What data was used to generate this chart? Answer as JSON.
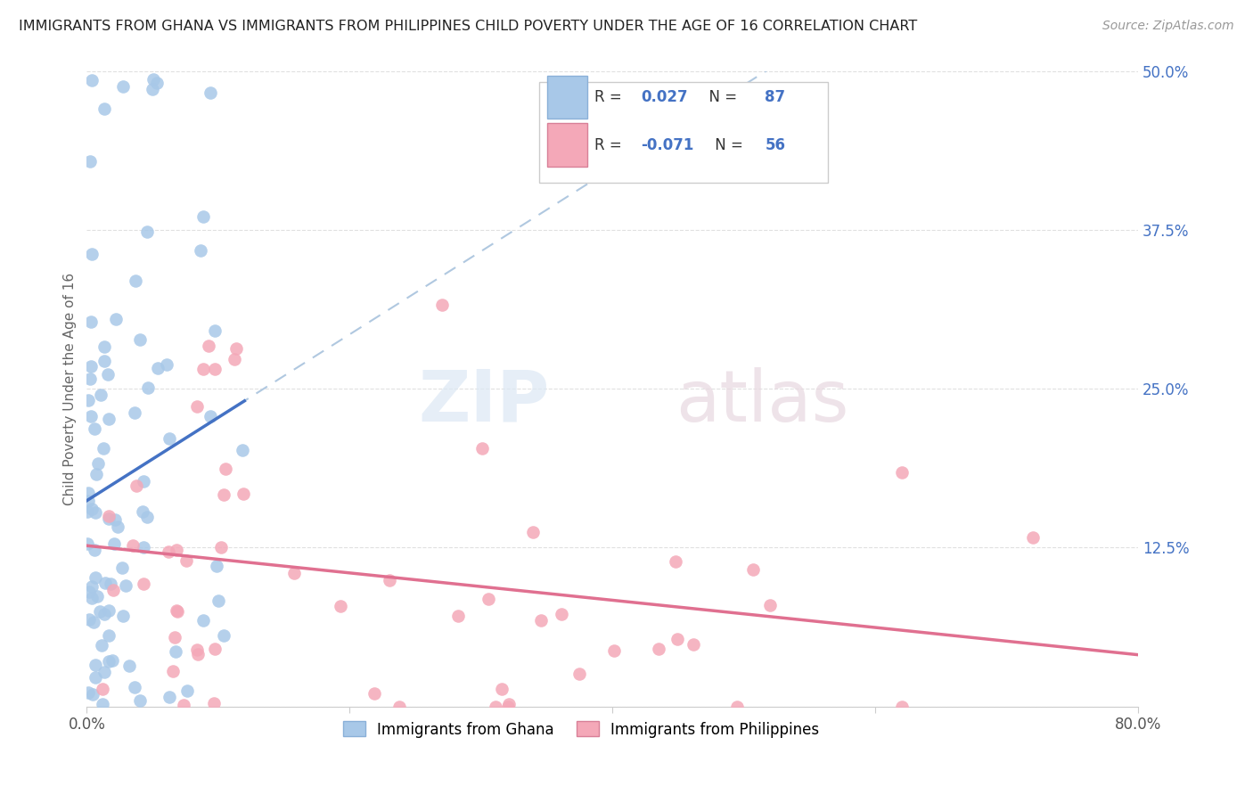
{
  "title": "IMMIGRANTS FROM GHANA VS IMMIGRANTS FROM PHILIPPINES CHILD POVERTY UNDER THE AGE OF 16 CORRELATION CHART",
  "source": "Source: ZipAtlas.com",
  "ylabel": "Child Poverty Under the Age of 16",
  "xlim": [
    0,
    0.8
  ],
  "ylim": [
    0,
    0.5
  ],
  "yticks": [
    0.0,
    0.125,
    0.25,
    0.375,
    0.5
  ],
  "ytick_labels": [
    "",
    "12.5%",
    "25.0%",
    "37.5%",
    "50.0%"
  ],
  "ghana_R": 0.027,
  "ghana_N": 87,
  "phil_R": -0.071,
  "phil_N": 56,
  "ghana_scatter_color": "#a8c8e8",
  "ghana_line_color": "#4472c4",
  "ghana_dashed_color": "#b0c8e0",
  "phil_scatter_color": "#f4a8b8",
  "phil_line_color": "#e07090",
  "background_color": "#ffffff",
  "grid_color": "#e0e0e0"
}
